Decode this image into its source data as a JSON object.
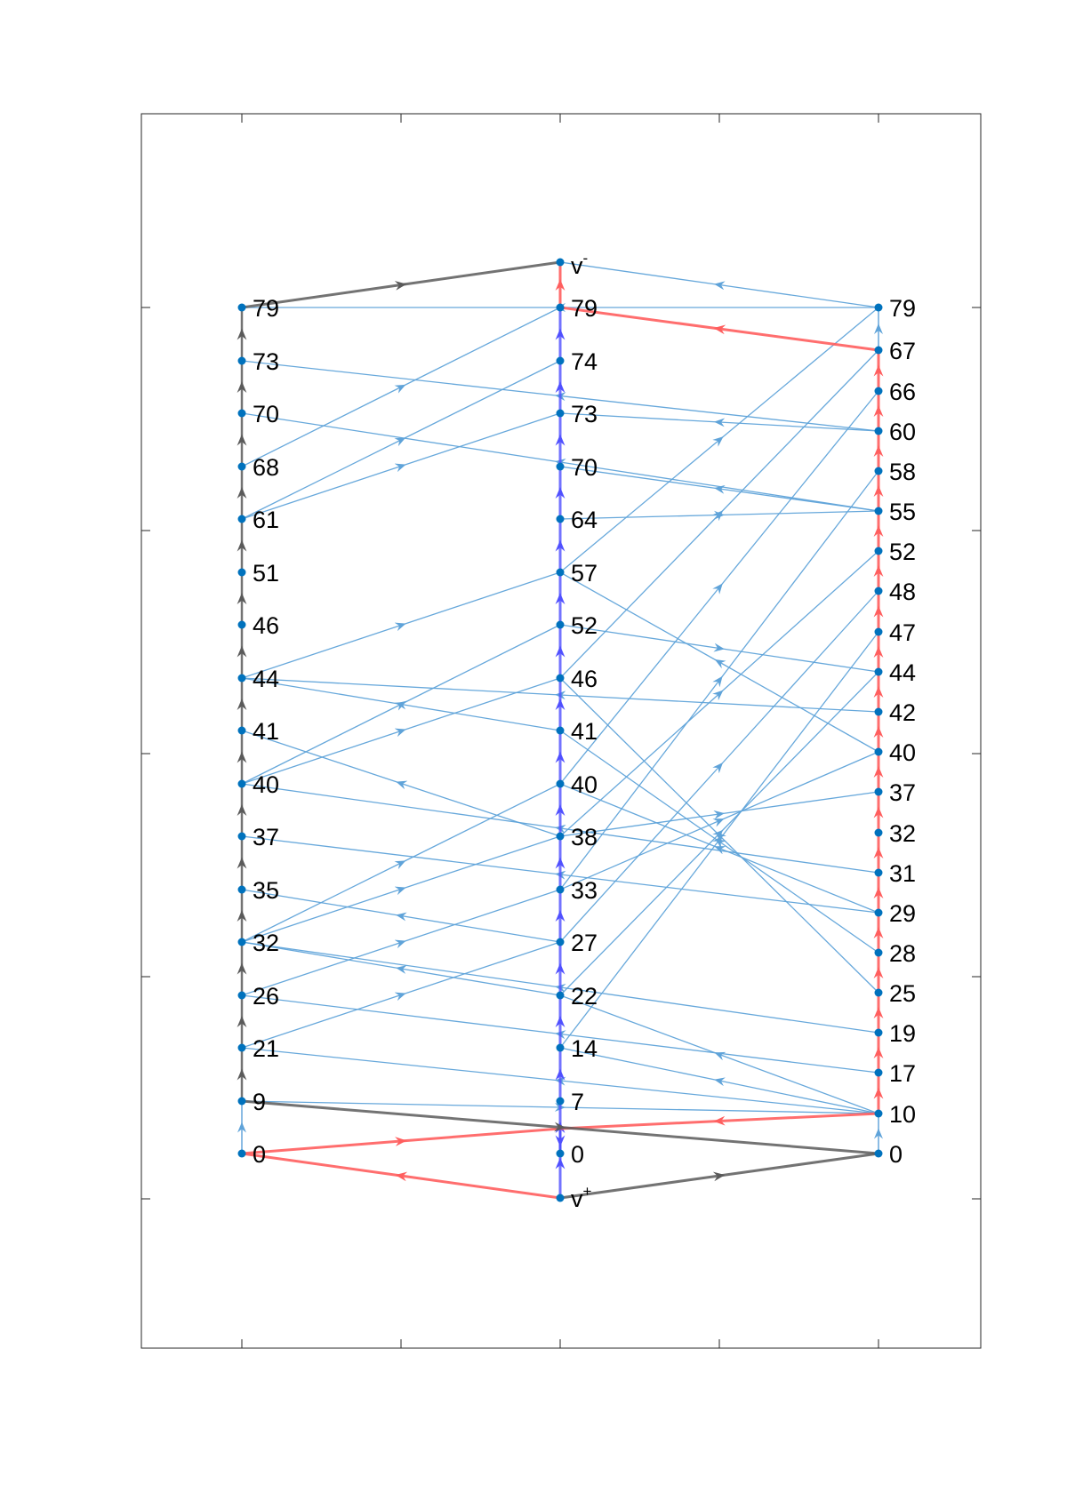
{
  "colors": {
    "background": "#ffffff",
    "frame": "#262626",
    "node": "#0072bd",
    "cross_edge": "#5fa3d9",
    "left_chain": "#5a5a5a",
    "middle_chain": "#5050ff",
    "right_chain": "#ff5e5e",
    "label": "#000000"
  },
  "columns": {
    "left": {
      "labels": [
        "0",
        "9",
        "21",
        "26",
        "32",
        "35",
        "37",
        "40",
        "41",
        "44",
        "46",
        "51",
        "61",
        "68",
        "70",
        "73",
        "79"
      ]
    },
    "middle": {
      "labels": [
        "0",
        "7",
        "14",
        "22",
        "27",
        "33",
        "38",
        "40",
        "41",
        "46",
        "52",
        "57",
        "64",
        "70",
        "73",
        "74",
        "79"
      ]
    },
    "right": {
      "labels": [
        "0",
        "10",
        "17",
        "19",
        "25",
        "28",
        "29",
        "31",
        "32",
        "37",
        "40",
        "42",
        "44",
        "47",
        "48",
        "52",
        "55",
        "58",
        "60",
        "66",
        "67",
        "79"
      ]
    }
  },
  "terminals": {
    "source": {
      "base": "v",
      "sup": "+"
    },
    "sink": {
      "base": "v",
      "sup": "-"
    }
  }
}
